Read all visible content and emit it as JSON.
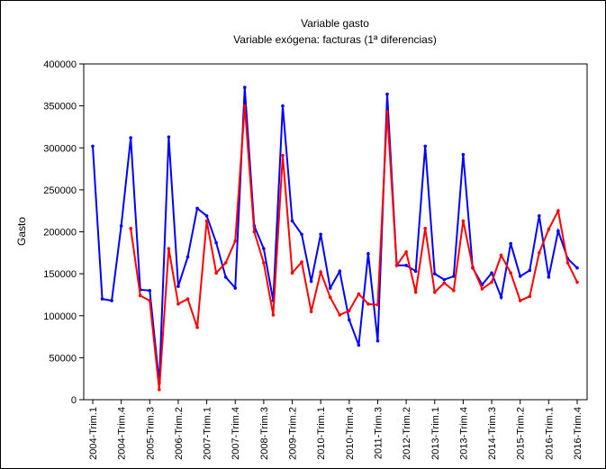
{
  "chart_data": {
    "type": "line",
    "title": "Variable gasto",
    "subtitle": "Variable exógena: facturas (1ª diferencias)",
    "ylabel": "Gasto",
    "categories": [
      "2004-Trim.1",
      null,
      null,
      "2004-Trim.4",
      null,
      null,
      "2005-Trim.3",
      null,
      null,
      "2006-Trim.2",
      null,
      null,
      "2007-Trim.1",
      null,
      null,
      "2007-Trim.4",
      null,
      null,
      "2008-Trim.3",
      null,
      null,
      "2009-Trim.2",
      null,
      null,
      "2010-Trim.1",
      null,
      null,
      "2010-Trim.4",
      null,
      null,
      "2011-Trim.3",
      null,
      null,
      "2012-Trim.2",
      null,
      null,
      "2013-Trim.1",
      null,
      null,
      "2013-Trim.4",
      null,
      null,
      "2014-Trim.3",
      null,
      null,
      "2015-Trim.2",
      null,
      null,
      "2016-Trim.1",
      null,
      null,
      "2016-Trim.4"
    ],
    "series": [
      {
        "color": "#0000ff",
        "values": [
          302000,
          120000,
          118000,
          207000,
          312000,
          131000,
          130000,
          20000,
          313000,
          135000,
          170000,
          228000,
          219000,
          187000,
          146000,
          133000,
          372000,
          207000,
          180000,
          118000,
          350000,
          213000,
          197000,
          141000,
          197000,
          133000,
          153000,
          95000,
          65000,
          174000,
          70000,
          364000,
          160000,
          160000,
          153000,
          302000,
          150000,
          143000,
          147000,
          292000,
          157000,
          137000,
          151000,
          122000,
          186000,
          147000,
          154000,
          219000,
          146000,
          201000,
          168000,
          157000
        ]
      },
      {
        "color": "#ff0000",
        "values": [
          null,
          null,
          null,
          null,
          204000,
          124000,
          118000,
          12000,
          180000,
          114000,
          120000,
          86000,
          213000,
          151000,
          163000,
          189000,
          350000,
          200000,
          163000,
          101000,
          291000,
          151000,
          164000,
          105000,
          152000,
          122000,
          101000,
          106000,
          126000,
          114000,
          113000,
          343000,
          160000,
          176000,
          128000,
          204000,
          128000,
          139000,
          130000,
          213000,
          158000,
          132000,
          140000,
          172000,
          151000,
          118000,
          123000,
          175000,
          203000,
          225000,
          163000,
          140000
        ]
      }
    ],
    "ylim": [
      0,
      400000
    ],
    "yticks": [
      0,
      50000,
      100000,
      150000,
      200000,
      250000,
      300000,
      350000,
      400000
    ],
    "grid": false
  }
}
